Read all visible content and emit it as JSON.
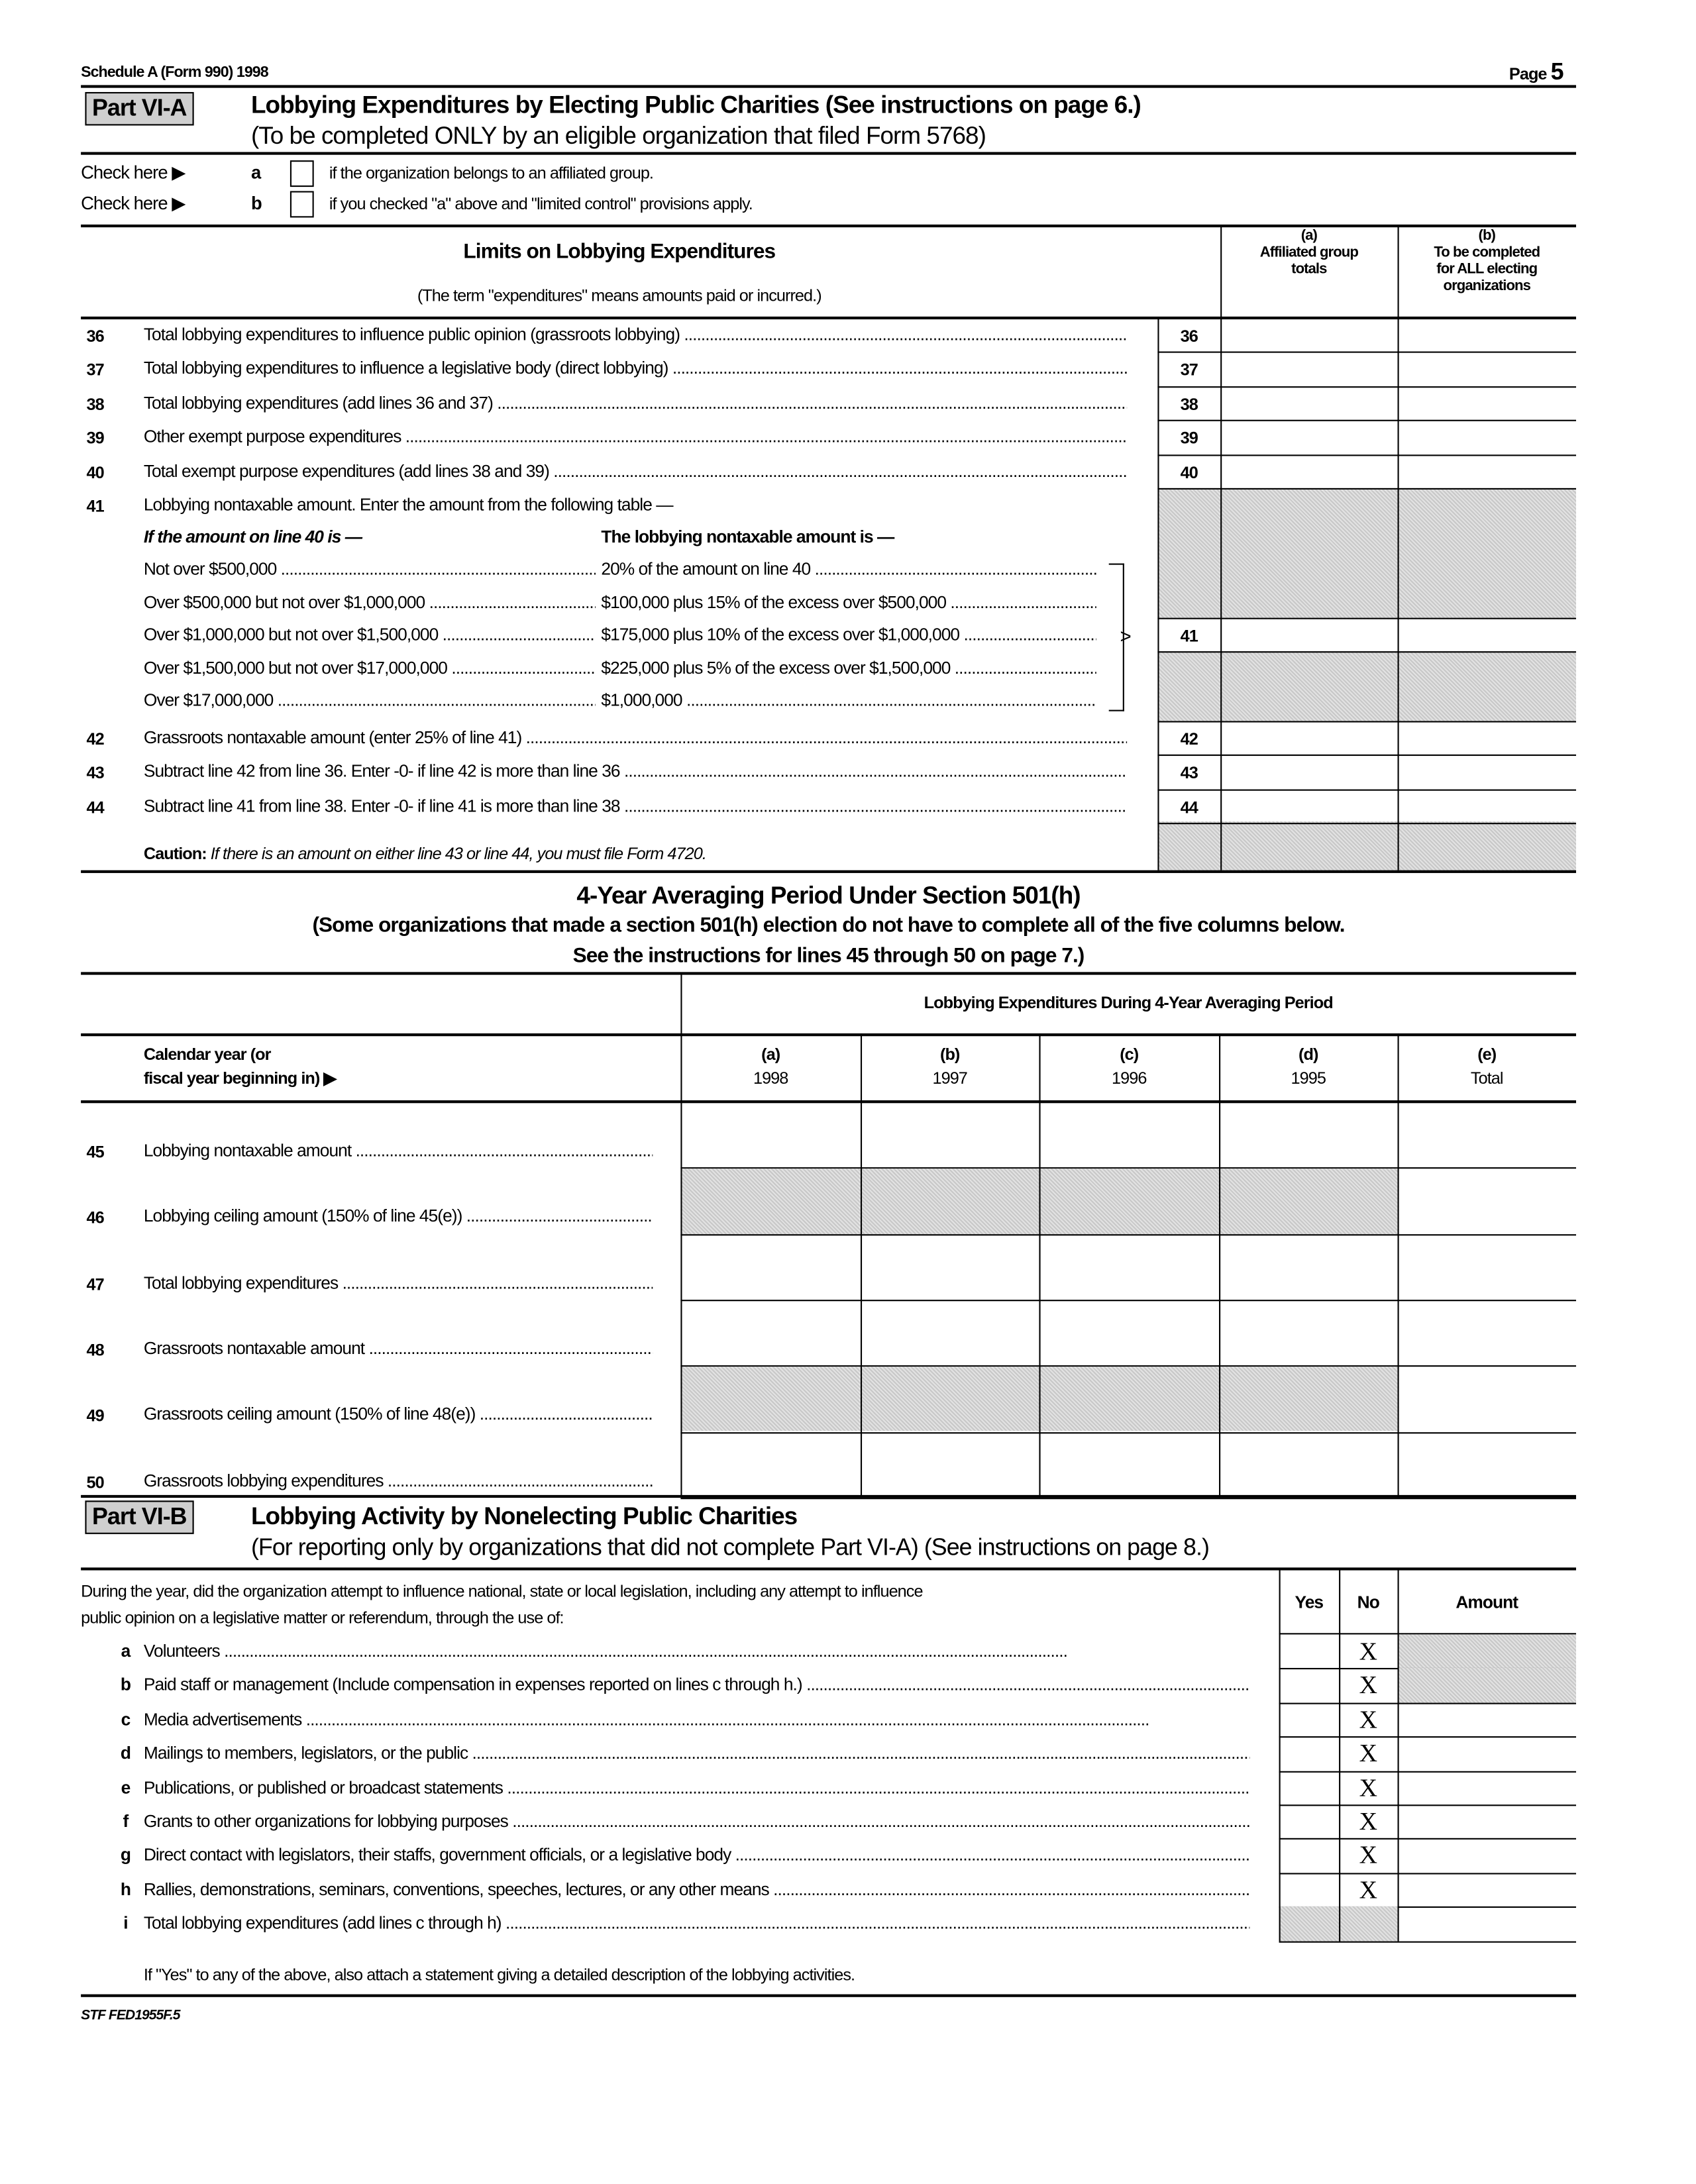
{
  "header": {
    "form_title": "Schedule A (Form 990) 1998",
    "page_label": "Page",
    "page_number": "5"
  },
  "part_6a": {
    "badge": "Part VI-A",
    "title": "Lobbying Expenditures by Electing Public Charities",
    "title_note": "(See instructions on page 6.)",
    "subtitle": "(To be completed ONLY by an eligible organization that filed Form 5768)",
    "checks": [
      {
        "prefix": "Check here ▶",
        "letter": "a",
        "text": "if the organization belongs to an affiliated group.",
        "checked": false
      },
      {
        "prefix": "Check here ▶",
        "letter": "b",
        "text": "if you checked \"a\" above and \"limited control\" provisions apply.",
        "checked": false
      }
    ],
    "limits_title": "Limits on Lobbying Expenditures",
    "limits_note": "(The term \"expenditures\" means amounts paid or incurred.)",
    "col_a": {
      "letter": "(a)",
      "l1": "Affiliated group",
      "l2": "totals"
    },
    "col_b": {
      "letter": "(b)",
      "l1": "To be completed",
      "l2": "for ALL electing",
      "l3": "organizations"
    },
    "lines": [
      {
        "num": "36",
        "text": "Total lobbying expenditures to influence public opinion (grassroots lobbying)"
      },
      {
        "num": "37",
        "text": "Total lobbying expenditures to influence a legislative body (direct lobbying)"
      },
      {
        "num": "38",
        "text": "Total lobbying expenditures (add lines 36 and 37)"
      },
      {
        "num": "39",
        "text": "Other exempt purpose expenditures"
      },
      {
        "num": "40",
        "text": "Total exempt purpose expenditures (add lines 38 and 39)"
      }
    ],
    "line41": {
      "num": "41",
      "text": "Lobbying nontaxable amount. Enter the amount from the following table —",
      "head_left": "If the amount on line 40 is —",
      "head_right": "The lobbying nontaxable amount is —",
      "table": [
        {
          "left": "Not over $500,000",
          "right": "20% of the amount on line 40"
        },
        {
          "left": "Over $500,000 but not over $1,000,000",
          "right": "$100,000 plus 15% of the excess over $500,000"
        },
        {
          "left": "Over $1,000,000 but not over $1,500,000",
          "right": "$175,000 plus 10% of the excess over $1,000,000"
        },
        {
          "left": "Over $1,500,000 but not over $17,000,000",
          "right": "$225,000 plus 5% of the excess over $1,500,000"
        },
        {
          "left": "Over $17,000,000",
          "right": "$1,000,000"
        }
      ]
    },
    "lines2": [
      {
        "num": "42",
        "text": "Grassroots nontaxable amount (enter 25% of line 41)"
      },
      {
        "num": "43",
        "text": "Subtract line 42 from line 36. Enter -0- if line 42 is more than line 36"
      },
      {
        "num": "44",
        "text": "Subtract line 41 from line 38. Enter -0- if line 41 is more than line 38"
      }
    ],
    "caution_label": "Caution:",
    "caution_text": "If there is an amount on either line 43 or line 44, you must file Form 4720."
  },
  "averaging": {
    "title": "4-Year Averaging Period Under Section 501(h)",
    "sub1": "(Some organizations that made a section 501(h) election do not have to complete all of the five columns below.",
    "sub2": "See the instructions for lines 45 through 50 on page 7.)",
    "span_header": "Lobbying Expenditures During 4-Year Averaging Period",
    "year_label_1": "Calendar year (or",
    "year_label_2": "fiscal year beginning in) ▶",
    "columns": [
      {
        "letter": "(a)",
        "label": "1998"
      },
      {
        "letter": "(b)",
        "label": "1997"
      },
      {
        "letter": "(c)",
        "label": "1996"
      },
      {
        "letter": "(d)",
        "label": "1995"
      },
      {
        "letter": "(e)",
        "label": "Total"
      }
    ],
    "rows": [
      {
        "num": "45",
        "text": "Lobbying nontaxable amount",
        "shaded": false
      },
      {
        "num": "46",
        "text": "Lobbying ceiling amount (150% of line 45(e))",
        "shaded": true
      },
      {
        "num": "47",
        "text": "Total lobbying expenditures",
        "shaded": false
      },
      {
        "num": "48",
        "text": "Grassroots nontaxable amount",
        "shaded": false
      },
      {
        "num": "49",
        "text": "Grassroots ceiling amount (150% of line 48(e))",
        "shaded": true
      },
      {
        "num": "50",
        "text": "Grassroots lobbying expenditures",
        "shaded": false
      }
    ]
  },
  "part_6b": {
    "badge": "Part VI-B",
    "title": "Lobbying Activity by Nonelecting Public Charities",
    "subtitle": "(For reporting only by organizations that did not complete Part VI-A) (See instructions on page 8.)",
    "intro_1": "During the year, did the organization attempt to influence national, state or local legislation, including any attempt to influence",
    "intro_2": "public opinion on a legislative matter or referendum, through the use of:",
    "col_yes": "Yes",
    "col_no": "No",
    "col_amount": "Amount",
    "items": [
      {
        "letter": "a",
        "text": "Volunteers",
        "no": "X",
        "amount_shaded": true
      },
      {
        "letter": "b",
        "text": "Paid staff or management (Include compensation in expenses reported on lines c through h.)",
        "no": "X",
        "amount_shaded": true
      },
      {
        "letter": "c",
        "text": "Media advertisements",
        "no": "X",
        "amount_shaded": false
      },
      {
        "letter": "d",
        "text": "Mailings to members, legislators, or the public",
        "no": "X",
        "amount_shaded": false
      },
      {
        "letter": "e",
        "text": "Publications, or published or broadcast statements",
        "no": "X",
        "amount_shaded": false
      },
      {
        "letter": "f",
        "text": "Grants to other organizations for lobbying purposes",
        "no": "X",
        "amount_shaded": false
      },
      {
        "letter": "g",
        "text": "Direct contact with legislators, their staffs, government officials, or a legislative body",
        "no": "X",
        "amount_shaded": false
      },
      {
        "letter": "h",
        "text": "Rallies, demonstrations, seminars, conventions, speeches, lectures, or any other means",
        "no": "X",
        "amount_shaded": false
      },
      {
        "letter": "i",
        "text": "Total lobbying expenditures (add lines c through h)",
        "no": "",
        "amount_shaded": false,
        "yesno_shaded": true
      }
    ],
    "footnote": "If \"Yes\" to any of the above, also attach a statement giving a detailed description of the lobbying activities."
  },
  "footer": {
    "code": "STF FED1955F.5"
  }
}
